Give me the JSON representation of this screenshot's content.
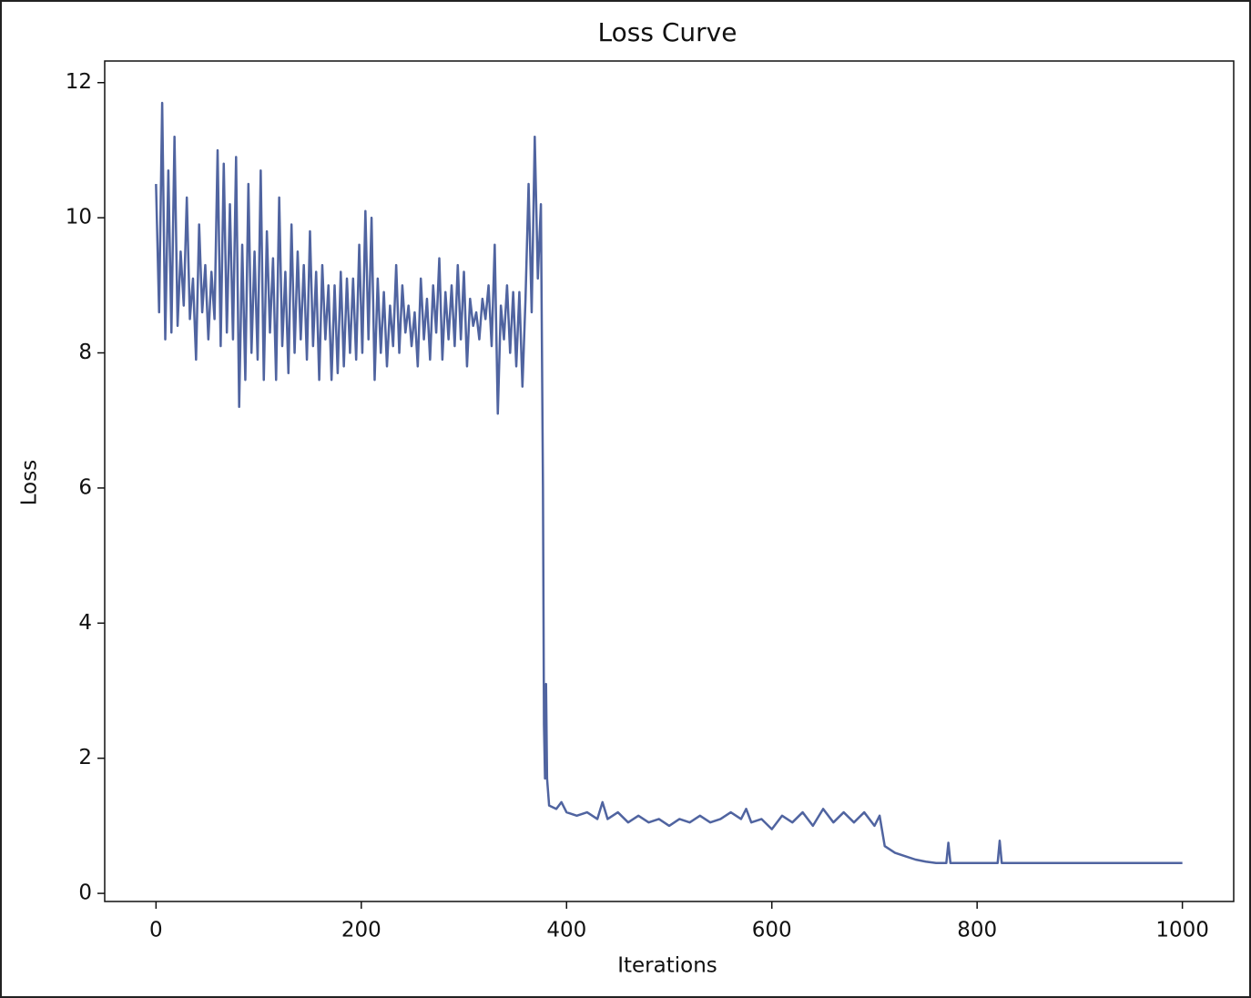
{
  "chart_data": {
    "type": "line",
    "title": "Loss Curve",
    "x_label": "Iterations",
    "y_label": "Loss",
    "color": "#5064a0",
    "x": [
      0,
      3,
      6,
      9,
      12,
      15,
      18,
      21,
      24,
      27,
      30,
      33,
      36,
      39,
      42,
      45,
      48,
      51,
      54,
      57,
      60,
      63,
      66,
      69,
      72,
      75,
      78,
      81,
      84,
      87,
      90,
      93,
      96,
      99,
      102,
      105,
      108,
      111,
      114,
      117,
      120,
      123,
      126,
      129,
      132,
      135,
      138,
      141,
      144,
      147,
      150,
      153,
      156,
      159,
      162,
      165,
      168,
      171,
      174,
      177,
      180,
      183,
      186,
      189,
      192,
      195,
      198,
      201,
      204,
      207,
      210,
      213,
      216,
      219,
      222,
      225,
      228,
      231,
      234,
      237,
      240,
      243,
      246,
      249,
      252,
      255,
      258,
      261,
      264,
      267,
      270,
      273,
      276,
      279,
      282,
      285,
      288,
      291,
      294,
      297,
      300,
      303,
      306,
      309,
      312,
      315,
      318,
      321,
      324,
      327,
      330,
      333,
      336,
      339,
      342,
      345,
      348,
      351,
      354,
      357,
      360,
      363,
      366,
      369,
      372,
      375,
      377,
      378,
      379,
      380,
      381,
      383,
      390,
      395,
      400,
      410,
      420,
      430,
      435,
      440,
      450,
      460,
      470,
      480,
      490,
      500,
      510,
      520,
      530,
      540,
      550,
      560,
      570,
      575,
      580,
      590,
      600,
      610,
      620,
      630,
      640,
      650,
      660,
      670,
      680,
      690,
      700,
      705,
      710,
      720,
      730,
      740,
      750,
      760,
      770,
      772,
      774,
      800,
      820,
      822,
      824,
      900,
      1000
    ],
    "values": [
      10.5,
      8.6,
      11.7,
      8.2,
      10.7,
      8.3,
      11.2,
      8.4,
      9.5,
      8.7,
      10.3,
      8.5,
      9.1,
      7.9,
      9.9,
      8.6,
      9.3,
      8.2,
      9.2,
      8.5,
      11.0,
      8.1,
      10.8,
      8.3,
      10.2,
      8.2,
      10.9,
      7.2,
      9.6,
      7.6,
      10.5,
      8.0,
      9.5,
      7.9,
      10.7,
      7.6,
      9.8,
      8.3,
      9.4,
      7.6,
      10.3,
      8.1,
      9.2,
      7.7,
      9.9,
      8.0,
      9.5,
      8.2,
      9.3,
      7.9,
      9.8,
      8.1,
      9.2,
      7.6,
      9.3,
      8.2,
      9.0,
      7.6,
      9.0,
      7.7,
      9.2,
      7.8,
      9.1,
      8.0,
      9.1,
      7.9,
      9.6,
      8.0,
      10.1,
      8.2,
      10.0,
      7.6,
      9.1,
      8.0,
      8.9,
      7.8,
      8.7,
      8.1,
      9.3,
      8.0,
      9.0,
      8.3,
      8.7,
      8.1,
      8.6,
      7.8,
      9.1,
      8.2,
      8.8,
      7.9,
      9.0,
      8.3,
      9.4,
      7.9,
      8.9,
      8.2,
      9.0,
      8.1,
      9.3,
      8.2,
      9.2,
      7.8,
      8.8,
      8.4,
      8.6,
      8.2,
      8.8,
      8.5,
      9.0,
      8.1,
      9.6,
      7.1,
      8.7,
      8.2,
      9.0,
      8.0,
      8.9,
      7.8,
      8.9,
      7.5,
      8.8,
      10.5,
      8.6,
      11.2,
      9.1,
      10.2,
      6.0,
      2.5,
      1.7,
      3.1,
      1.7,
      1.3,
      1.25,
      1.35,
      1.2,
      1.15,
      1.2,
      1.1,
      1.35,
      1.1,
      1.2,
      1.05,
      1.15,
      1.05,
      1.1,
      1.0,
      1.1,
      1.05,
      1.15,
      1.05,
      1.1,
      1.2,
      1.1,
      1.25,
      1.05,
      1.1,
      0.95,
      1.15,
      1.05,
      1.2,
      1.0,
      1.25,
      1.05,
      1.2,
      1.05,
      1.2,
      1.0,
      1.15,
      0.7,
      0.6,
      0.55,
      0.5,
      0.47,
      0.45,
      0.45,
      0.75,
      0.45,
      0.45,
      0.45,
      0.78,
      0.45,
      0.45,
      0.45
    ],
    "xlim": [
      -50,
      1050
    ],
    "ylim": [
      -0.12,
      12.32
    ],
    "xticks": [
      0,
      200,
      400,
      600,
      800,
      1000
    ],
    "yticks": [
      0,
      2,
      4,
      6,
      8,
      10,
      12
    ]
  }
}
